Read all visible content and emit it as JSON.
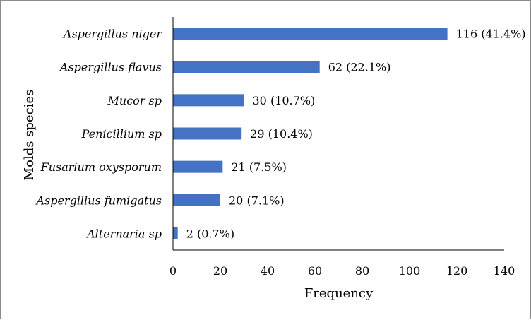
{
  "chart_data": {
    "type": "bar",
    "orientation": "horizontal",
    "categories": [
      "Aspergillus niger",
      "Aspergillus flavus",
      "Mucor sp",
      "Penicillium sp",
      "Fusarium oxysporum",
      "Aspergillus fumigatus",
      "Alternaria sp"
    ],
    "values": [
      116,
      62,
      30,
      29,
      21,
      20,
      2
    ],
    "data_labels": [
      "116 (41.4%)",
      "62 (22.1%)",
      "30 (10.7%)",
      "29 (10.4%)",
      "21 (7.5%)",
      "20 (7.1%)",
      "2 (0.7%)"
    ],
    "xlabel": "Frequency",
    "ylabel": "Molds species",
    "xlim": [
      0,
      140
    ],
    "xticks": [
      0,
      20,
      40,
      60,
      80,
      100,
      120,
      140
    ],
    "grid": false,
    "legend": "none",
    "bar_color": "#4472c4"
  }
}
